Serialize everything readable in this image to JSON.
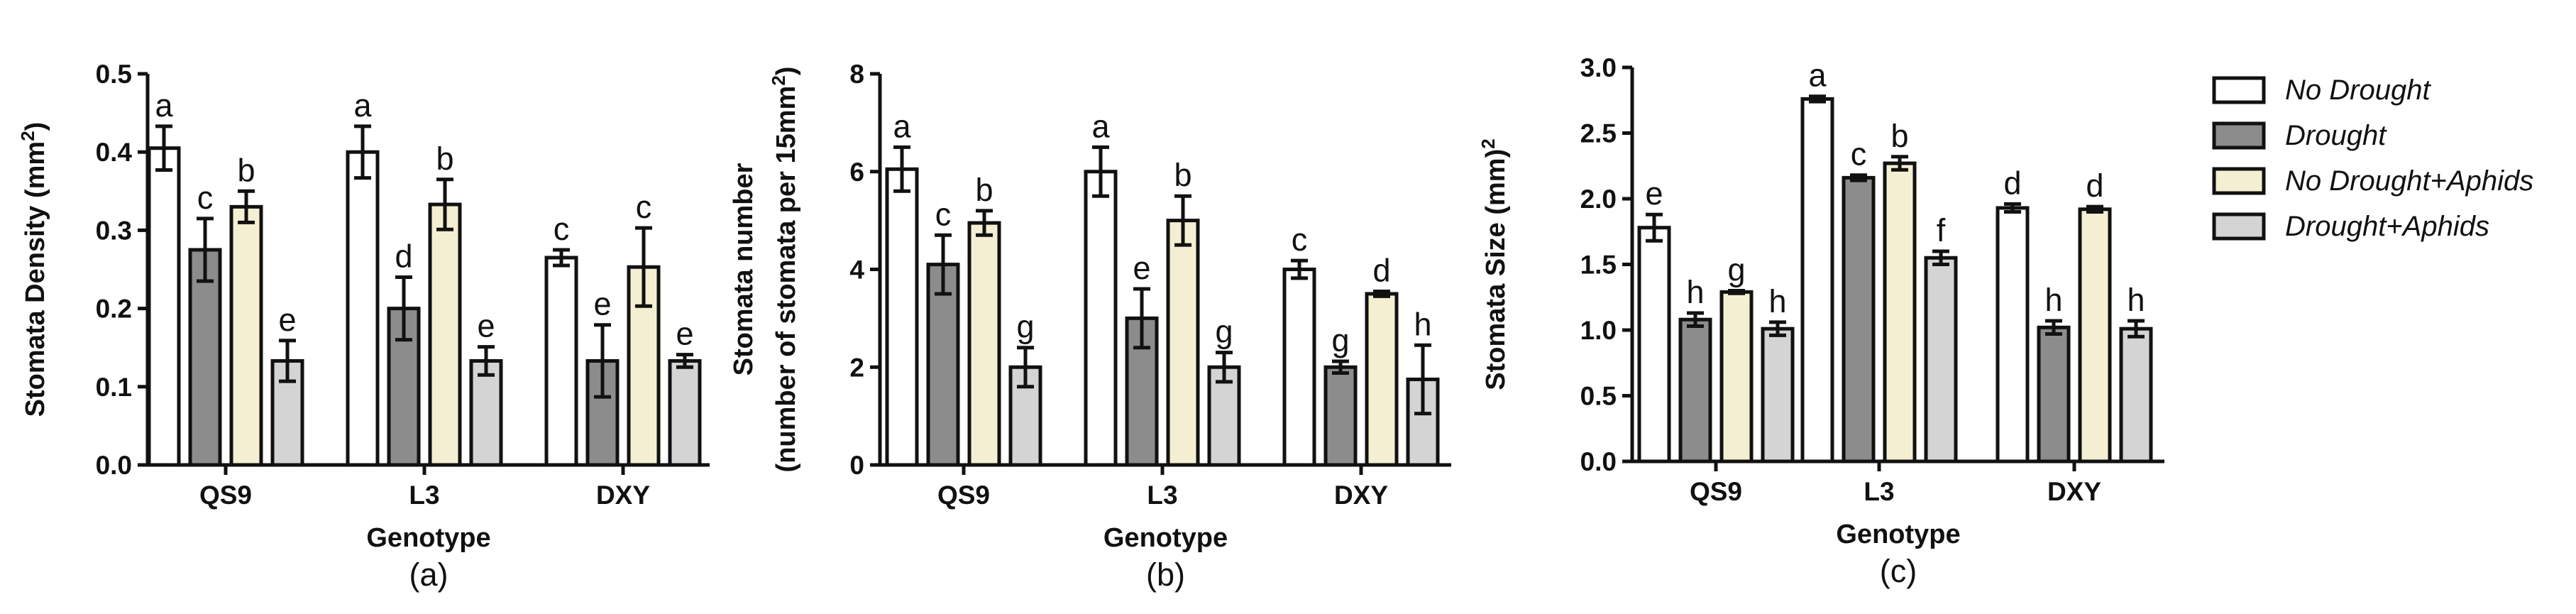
{
  "colors": {
    "No Drought": "#ffffff",
    "Drought": "#8c8c8c",
    "No Drought+Aphids": "#f4efd2",
    "Drought+Aphids": "#d4d4d4",
    "outline": "#111111"
  },
  "legend": {
    "placement": "right",
    "entries": [
      "No Drought",
      "Drought",
      "No Drought+Aphids",
      "Drought+Aphids"
    ]
  },
  "chart_data": [
    {
      "type": "bar",
      "panel_label": "(a)",
      "ylabel_main": "Stomata Density (mm",
      "ylabel_sup": "2",
      "ylabel_tail": ")",
      "ylabel_line2": "",
      "xlabel": "Genotype",
      "ylim": [
        0,
        0.5
      ],
      "yticks": [
        0.0,
        0.1,
        0.2,
        0.3,
        0.4,
        0.5
      ],
      "ytick_labels": [
        "0.0",
        "0.1",
        "0.2",
        "0.3",
        "0.4",
        "0.5"
      ],
      "categories": [
        "QS9",
        "L3",
        "DXY"
      ],
      "series": [
        {
          "name": "No Drought",
          "values": [
            0.405,
            0.4,
            0.265
          ],
          "errors": [
            0.028,
            0.033,
            0.01
          ],
          "letters": [
            "a",
            "a",
            "c"
          ]
        },
        {
          "name": "Drought",
          "values": [
            0.275,
            0.2,
            0.133
          ],
          "errors": [
            0.04,
            0.04,
            0.046
          ],
          "letters": [
            "c",
            "d",
            "e"
          ]
        },
        {
          "name": "No Drought+Aphids",
          "values": [
            0.33,
            0.333,
            0.253
          ],
          "errors": [
            0.02,
            0.032,
            0.05
          ],
          "letters": [
            "b",
            "b",
            "c"
          ]
        },
        {
          "name": "Drought+Aphids",
          "values": [
            0.133,
            0.133,
            0.133
          ],
          "errors": [
            0.026,
            0.018,
            0.008
          ],
          "letters": [
            "e",
            "e",
            "e"
          ]
        }
      ]
    },
    {
      "type": "bar",
      "panel_label": "(b)",
      "ylabel_main": "Stomata number",
      "ylabel_sup": "",
      "ylabel_tail": "",
      "ylabel_line2": "(number of stomata per 15mm",
      "ylabel_line2_sup": "2",
      "ylabel_line2_tail": ")",
      "xlabel": "Genotype",
      "ylim": [
        0,
        8
      ],
      "yticks": [
        0,
        2,
        4,
        6,
        8
      ],
      "ytick_labels": [
        "0",
        "2",
        "4",
        "6",
        "8"
      ],
      "categories": [
        "QS9",
        "L3",
        "DXY"
      ],
      "series": [
        {
          "name": "No Drought",
          "values": [
            6.05,
            6.0,
            4.0
          ],
          "errors": [
            0.45,
            0.5,
            0.18
          ],
          "letters": [
            "a",
            "a",
            "c"
          ]
        },
        {
          "name": "Drought",
          "values": [
            4.1,
            3.0,
            2.0
          ],
          "errors": [
            0.6,
            0.6,
            0.12
          ],
          "letters": [
            "c",
            "e",
            "g"
          ]
        },
        {
          "name": "No Drought+Aphids",
          "values": [
            4.95,
            5.0,
            3.5
          ],
          "errors": [
            0.25,
            0.5,
            0.05
          ],
          "letters": [
            "b",
            "b",
            "d"
          ]
        },
        {
          "name": "Drought+Aphids",
          "values": [
            2.0,
            2.0,
            1.75
          ],
          "errors": [
            0.4,
            0.3,
            0.7
          ],
          "letters": [
            "g",
            "g",
            "h"
          ]
        }
      ]
    },
    {
      "type": "bar",
      "panel_label": "(c)",
      "ylabel_main": "Stomata Size (mm)",
      "ylabel_sup": "2",
      "ylabel_tail": "",
      "ylabel_line2": "",
      "xlabel": "Genotype",
      "ylim": [
        0,
        3.0
      ],
      "yticks": [
        0.0,
        0.5,
        1.0,
        1.5,
        2.0,
        2.5,
        3.0
      ],
      "ytick_labels": [
        "0.0",
        "0.5",
        "1.0",
        "1.5",
        "2.0",
        "2.5",
        "3.0"
      ],
      "categories": [
        "QS9",
        "L3",
        "DXY"
      ],
      "series": [
        {
          "name": "No Drought",
          "values": [
            1.78,
            2.76,
            1.93
          ],
          "errors": [
            0.1,
            0.02,
            0.03
          ],
          "letters": [
            "e",
            "a",
            "d"
          ]
        },
        {
          "name": "Drought",
          "values": [
            1.08,
            2.16,
            1.02
          ],
          "errors": [
            0.05,
            0.02,
            0.05
          ],
          "letters": [
            "h",
            "c",
            "h"
          ]
        },
        {
          "name": "No Drought+Aphids",
          "values": [
            1.29,
            2.27,
            1.92
          ],
          "errors": [
            0.01,
            0.05,
            0.02
          ],
          "letters": [
            "g",
            "b",
            "d"
          ]
        },
        {
          "name": "Drought+Aphids",
          "values": [
            1.01,
            1.55,
            1.01
          ],
          "errors": [
            0.05,
            0.05,
            0.06
          ],
          "letters": [
            "h",
            "f",
            "h"
          ]
        }
      ]
    }
  ]
}
